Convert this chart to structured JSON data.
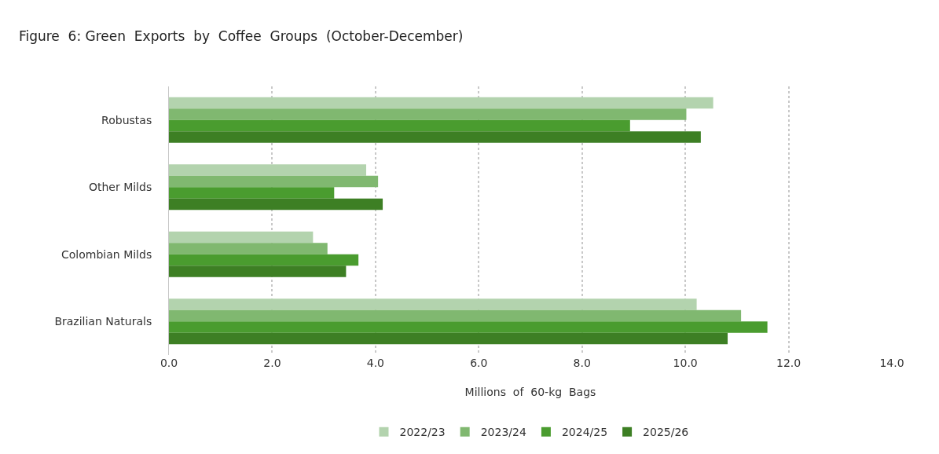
{
  "chart_data": {
    "type": "bar",
    "orientation": "horizontal",
    "title": "Figure  6: Green  Exports  by  Coffee  Groups  (October-December)",
    "xlabel": "Millions  of  60-kg  Bags",
    "categories": [
      "Robustas",
      "Other Milds",
      "Colombian Milds",
      "Brazilian Naturals"
    ],
    "series": [
      {
        "name": "2022/23",
        "color": "#b3d3ae",
        "values": [
          10.54,
          3.82,
          2.79,
          10.22
        ]
      },
      {
        "name": "2023/24",
        "color": "#80b870",
        "values": [
          10.02,
          4.05,
          3.07,
          11.08
        ]
      },
      {
        "name": "2024/25",
        "color": "#4a9c2f",
        "values": [
          8.93,
          3.2,
          3.67,
          11.59
        ]
      },
      {
        "name": "2025/26",
        "color": "#3d7f24",
        "values": [
          10.3,
          4.14,
          3.43,
          10.82
        ]
      }
    ],
    "xlim": [
      0,
      14
    ],
    "xticks": [
      {
        "value": 0,
        "label": "0.0"
      },
      {
        "value": 2,
        "label": "2.0"
      },
      {
        "value": 4,
        "label": "4.0"
      },
      {
        "value": 6,
        "label": "6.0"
      },
      {
        "value": 8,
        "label": "8.0"
      },
      {
        "value": 10,
        "label": "10.0"
      },
      {
        "value": 12,
        "label": "12.0"
      },
      {
        "value": 14,
        "label": "14.0"
      }
    ],
    "grid": "x",
    "legend": "bottom"
  }
}
